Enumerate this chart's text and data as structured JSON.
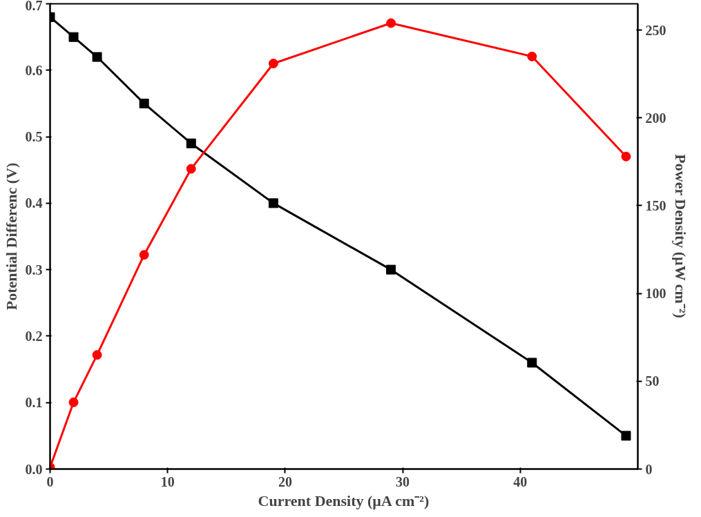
{
  "chart_data": {
    "type": "line",
    "xlabel": "Current Density (µA cm⁻²)",
    "ylabel": "Potential Differenc (V)",
    "y2label": "Power Density (µW cm⁻²)",
    "xlim": [
      0,
      50
    ],
    "xticks": [
      0,
      10,
      20,
      30,
      40
    ],
    "ylim": [
      0,
      0.7
    ],
    "yticks": [
      {
        "value": 0,
        "label": "0.0"
      },
      0.1,
      0.2,
      0.3,
      0.4,
      0.5,
      0.6,
      0.7
    ],
    "y2lim": [
      0,
      265
    ],
    "y2ticks": [
      0,
      50,
      100,
      150,
      200,
      250
    ],
    "grid": false,
    "line_style": "solid",
    "series": [
      {
        "color": "#000000",
        "marker": "square",
        "x": [
          0,
          2,
          4,
          8,
          12,
          19,
          29,
          41,
          49
        ],
        "values": [
          0.68,
          0.65,
          0.62,
          0.55,
          0.49,
          0.4,
          0.3,
          0.16,
          0.05
        ]
      },
      {
        "color": "#ff0000",
        "marker": "circle",
        "axis": "y2",
        "x": [
          0,
          2,
          4,
          8,
          12,
          19,
          29,
          41,
          49
        ],
        "values": [
          1,
          38,
          65,
          122,
          171,
          231,
          254,
          235,
          178
        ]
      }
    ]
  }
}
